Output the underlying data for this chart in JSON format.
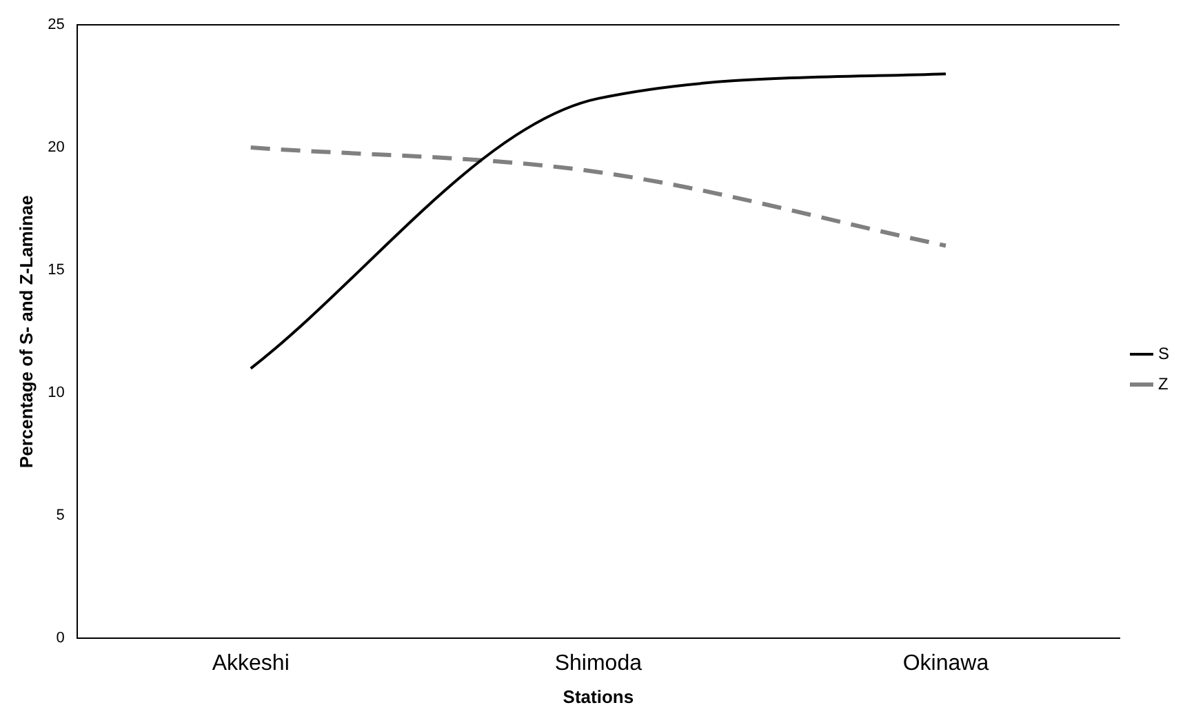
{
  "chart_data": {
    "type": "line",
    "xlabel": "Stations",
    "ylabel": "Percentage of S- and Z-Laminae",
    "categories": [
      "Akkeshi",
      "Shimoda",
      "Okinawa"
    ],
    "series": [
      {
        "name": "S",
        "color": "#000000",
        "values": [
          11,
          22,
          23
        ],
        "line_style": "solid"
      },
      {
        "name": "Z",
        "color": "#808080",
        "values": [
          20,
          19,
          16
        ],
        "line_style": "dashed"
      }
    ],
    "ylim": [
      0,
      25
    ],
    "yticks": [
      0,
      5,
      10,
      15,
      20,
      25
    ],
    "grid": false,
    "legend": "right",
    "marker": "none"
  }
}
